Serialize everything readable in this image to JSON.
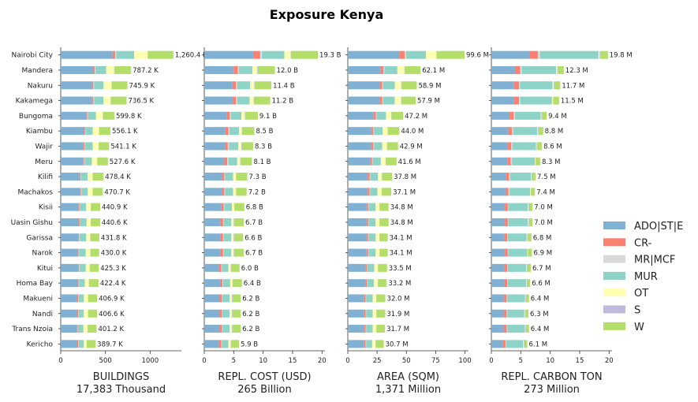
{
  "title": "Exposure Kenya",
  "chart_data": {
    "type": "bar",
    "orientation": "horizontal",
    "stacked": true,
    "title": "Exposure Kenya",
    "categories": [
      "Nairobi City",
      "Mandera",
      "Nakuru",
      "Kakamega",
      "Bungoma",
      "Kiambu",
      "Wajir",
      "Meru",
      "Kilifi",
      "Machakos",
      "Kisii",
      "Uasin Gishu",
      "Garissa",
      "Narok",
      "Kitui",
      "Homa Bay",
      "Makueni",
      "Nandi",
      "Trans Nzoia",
      "Kericho"
    ],
    "legend": {
      "position": "right",
      "series": [
        {
          "name": "ADO|ST|E",
          "color": "#80b1d3"
        },
        {
          "name": "CR-",
          "color": "#fb8072"
        },
        {
          "name": "MR|MCF",
          "color": "#d9d9d9"
        },
        {
          "name": "MUR",
          "color": "#8dd3c7"
        },
        {
          "name": "OT",
          "color": "#ffffb3"
        },
        {
          "name": "S",
          "color": "#bebada"
        },
        {
          "name": "W",
          "color": "#b3de69"
        }
      ]
    },
    "panels": [
      {
        "xlabel": "BUILDINGS",
        "subtitle": "17,383 Thousand",
        "xlim": [
          0,
          1350
        ],
        "xticks": [
          0,
          500,
          1000
        ],
        "xtick_labels": [
          "0",
          "500",
          "1000"
        ],
        "totals": [
          1260.4,
          787.2,
          745.9,
          736.5,
          599.8,
          556.1,
          541.1,
          527.6,
          478.4,
          470.7,
          440.9,
          440.6,
          431.8,
          430.0,
          425.3,
          422.4,
          406.9,
          406.6,
          401.2,
          389.7
        ],
        "labels": [
          "1,260.4 K",
          "787.2 K",
          "745.9 K",
          "736.5 K",
          "599.8 K",
          "556.1 K",
          "541.1 K",
          "527.6 K",
          "478.4 K",
          "470.7 K",
          "440.9 K",
          "440.6 K",
          "431.8 K",
          "430.0 K",
          "425.3 K",
          "422.4 K",
          "406.9 K",
          "406.6 K",
          "401.2 K",
          "389.7 K"
        ],
        "series": [
          {
            "name": "ADO|ST|E",
            "values": [
              580,
              365,
              350,
              350,
              285,
              260,
              255,
              250,
              210,
              215,
              200,
              205,
              195,
              190,
              195,
              190,
              185,
              185,
              180,
              185
            ]
          },
          {
            "name": "CR-",
            "values": [
              30,
              15,
              15,
              15,
              13,
              12,
              12,
              12,
              11,
              11,
              10,
              10,
              10,
              10,
              10,
              10,
              9,
              9,
              9,
              9
            ]
          },
          {
            "name": "MR|MCF",
            "values": [
              12,
              8,
              8,
              8,
              7,
              6,
              6,
              6,
              6,
              6,
              5,
              5,
              5,
              5,
              5,
              5,
              5,
              5,
              5,
              5
            ]
          },
          {
            "name": "MUR",
            "values": [
              200,
              120,
              105,
              105,
              90,
              80,
              85,
              80,
              75,
              70,
              70,
              70,
              75,
              75,
              70,
              65,
              60,
              60,
              60,
              60
            ]
          },
          {
            "name": "OT",
            "values": [
              150,
              90,
              90,
              80,
              75,
              70,
              65,
              60,
              55,
              55,
              50,
              45,
              45,
              50,
              45,
              45,
              45,
              45,
              45,
              30
            ]
          },
          {
            "name": "S",
            "values": [
              5,
              3,
              3,
              3,
              3,
              3,
              3,
              3,
              2,
              2,
              2,
              2,
              2,
              2,
              2,
              2,
              2,
              2,
              2,
              2
            ]
          },
          {
            "name": "W",
            "values": [
              283.4,
              186.2,
              174.9,
              175.5,
              126.8,
              125.1,
              115.1,
              116.6,
              119.4,
              111.7,
              103.9,
              103.6,
              99.8,
              98,
              98.3,
              105.4,
              100.9,
              100.6,
              100.2,
              98.7
            ]
          }
        ]
      },
      {
        "xlabel": "REPL. COST (USD)",
        "subtitle": "265 Billion",
        "xlim": [
          0,
          20.5
        ],
        "xticks": [
          0,
          5,
          10,
          15,
          20
        ],
        "xtick_labels": [
          "0",
          "5",
          "10",
          "15",
          "20"
        ],
        "totals": [
          19.3,
          12.0,
          11.4,
          11.2,
          9.1,
          8.5,
          8.3,
          8.1,
          7.3,
          7.2,
          6.8,
          6.7,
          6.6,
          6.7,
          6.0,
          6.4,
          6.2,
          6.2,
          6.2,
          5.9
        ],
        "labels": [
          "19.3 B",
          "12.0 B",
          "11.4 B",
          "11.2 B",
          "9.1 B",
          "8.5 B",
          "8.3 B",
          "8.1 B",
          "7.3 B",
          "7.2 B",
          "6.8 B",
          "6.7 B",
          "6.6 B",
          "6.7 B",
          "6.0 B",
          "6.4 B",
          "6.2 B",
          "6.2 B",
          "6.2 B",
          "5.9 B"
        ],
        "series": [
          {
            "name": "ADO|ST|E",
            "values": [
              8.3,
              5.0,
              4.8,
              4.8,
              3.8,
              3.6,
              3.5,
              3.4,
              3.0,
              3.0,
              2.9,
              2.8,
              2.8,
              2.8,
              2.5,
              2.7,
              2.6,
              2.6,
              2.6,
              2.5
            ]
          },
          {
            "name": "CR-",
            "values": [
              1.2,
              0.7,
              0.6,
              0.6,
              0.5,
              0.5,
              0.5,
              0.5,
              0.4,
              0.4,
              0.4,
              0.4,
              0.4,
              0.4,
              0.4,
              0.4,
              0.4,
              0.4,
              0.4,
              0.4
            ]
          },
          {
            "name": "MR|MCF",
            "values": [
              0.3,
              0.2,
              0.2,
              0.2,
              0.2,
              0.2,
              0.2,
              0.2,
              0.1,
              0.1,
              0.1,
              0.1,
              0.1,
              0.1,
              0.1,
              0.1,
              0.1,
              0.1,
              0.1,
              0.1
            ]
          },
          {
            "name": "MUR",
            "values": [
              3.8,
              2.3,
              2.2,
              2.1,
              1.8,
              1.6,
              1.6,
              1.5,
              1.4,
              1.4,
              1.3,
              1.3,
              1.3,
              1.3,
              1.1,
              1.2,
              1.2,
              1.2,
              1.2,
              1.1
            ]
          },
          {
            "name": "OT",
            "values": [
              1.1,
              0.8,
              0.7,
              0.7,
              0.6,
              0.5,
              0.5,
              0.5,
              0.5,
              0.5,
              0.4,
              0.4,
              0.4,
              0.4,
              0.4,
              0.4,
              0.4,
              0.4,
              0.4,
              0.4
            ]
          },
          {
            "name": "S",
            "values": [
              0.1,
              0.1,
              0.1,
              0.1,
              0.1,
              0.1,
              0.1,
              0.1,
              0.1,
              0.1,
              0.1,
              0.1,
              0.1,
              0.1,
              0.1,
              0.1,
              0.1,
              0.1,
              0.1,
              0.1
            ]
          },
          {
            "name": "W",
            "values": [
              4.5,
              2.9,
              2.8,
              2.7,
              2.1,
              2.0,
              1.9,
              1.9,
              1.8,
              1.7,
              1.6,
              1.6,
              1.5,
              1.6,
              1.4,
              1.5,
              1.4,
              1.4,
              1.4,
              1.3
            ]
          }
        ]
      },
      {
        "xlabel": "AREA (SQM)",
        "subtitle": "1,371 Million",
        "xlim": [
          0,
          103
        ],
        "xticks": [
          0,
          25,
          50,
          75,
          100
        ],
        "xtick_labels": [
          "0",
          "25",
          "50",
          "75",
          "100"
        ],
        "totals": [
          99.6,
          62.1,
          58.9,
          57.9,
          47.2,
          44.0,
          42.9,
          41.6,
          37.8,
          37.1,
          34.8,
          34.8,
          34.1,
          34.1,
          33.5,
          33.2,
          32.0,
          31.9,
          31.7,
          30.7
        ],
        "labels": [
          "99.6 M",
          "62.1 M",
          "58.9 M",
          "57.9 M",
          "47.2 M",
          "44.0 M",
          "42.9 M",
          "41.6 M",
          "37.8 M",
          "37.1 M",
          "34.8 M",
          "34.8 M",
          "34.1 M",
          "34.1 M",
          "33.5 M",
          "33.2 M",
          "32.0 M",
          "31.9 M",
          "31.7 M",
          "30.7 M"
        ],
        "series": [
          {
            "name": "ADO|ST|E",
            "values": [
              44,
              28,
              27,
              27,
              22,
              20,
              20,
              19,
              17,
              17,
              16,
              16,
              16,
              16,
              15,
              15,
              14,
              14,
              14,
              14
            ]
          },
          {
            "name": "CR-",
            "values": [
              4.5,
              2.5,
              2.4,
              2.3,
              2.0,
              1.8,
              1.8,
              1.7,
              1.6,
              1.5,
              1.4,
              1.4,
              1.4,
              1.4,
              1.4,
              1.4,
              1.3,
              1.3,
              1.3,
              1.2
            ]
          },
          {
            "name": "MR|MCF",
            "values": [
              1.2,
              0.8,
              0.7,
              0.7,
              0.6,
              0.5,
              0.5,
              0.5,
              0.5,
              0.5,
              0.4,
              0.4,
              0.4,
              0.4,
              0.4,
              0.4,
              0.4,
              0.4,
              0.4,
              0.4
            ]
          },
          {
            "name": "MUR",
            "values": [
              17,
              11,
              10,
              10,
              8,
              7.5,
              7,
              7,
              6.5,
              6.3,
              6,
              6,
              6,
              6,
              5.8,
              5.6,
              5.5,
              5.5,
              5.5,
              5.2
            ]
          },
          {
            "name": "OT",
            "values": [
              9,
              6,
              5.5,
              5.5,
              4.5,
              4.2,
              4,
              4,
              3.5,
              3.5,
              3.2,
              3.2,
              3.1,
              3.1,
              3.1,
              3.1,
              3,
              3,
              3,
              2.9
            ]
          },
          {
            "name": "S",
            "values": [
              0.4,
              0.3,
              0.3,
              0.3,
              0.2,
              0.2,
              0.2,
              0.2,
              0.2,
              0.2,
              0.2,
              0.2,
              0.2,
              0.2,
              0.2,
              0.2,
              0.2,
              0.2,
              0.2,
              0.2
            ]
          },
          {
            "name": "W",
            "values": [
              23.5,
              13.5,
              13,
              12.1,
              9.9,
              9.8,
              9.4,
              9.2,
              8.5,
              8.1,
              7.6,
              7.6,
              7,
              7,
              7.6,
              7.5,
              7.6,
              7.5,
              7.3,
              6.8
            ]
          }
        ]
      },
      {
        "xlabel": "REPL. CARBON TON",
        "subtitle": "273 Million",
        "xlim": [
          0,
          20.5
        ],
        "xticks": [
          0,
          5,
          10,
          15,
          20
        ],
        "xtick_labels": [
          "0",
          "5",
          "10",
          "15",
          "20"
        ],
        "totals": [
          19.8,
          12.3,
          11.7,
          11.5,
          9.4,
          8.8,
          8.6,
          8.3,
          7.5,
          7.4,
          7.0,
          7.0,
          6.8,
          6.9,
          6.7,
          6.6,
          6.4,
          6.3,
          6.4,
          6.1
        ],
        "labels": [
          "19.8 M",
          "12.3 M",
          "11.7 M",
          "11.5 M",
          "9.4 M",
          "8.8 M",
          "8.6 M",
          "8.3 M",
          "7.5 M",
          "7.4 M",
          "7.0 M",
          "7.0 M",
          "6.8 M",
          "6.9 M",
          "6.7 M",
          "6.6 M",
          "6.4 M",
          "6.3 M",
          "6.4 M",
          "6.1 M"
        ],
        "series": [
          {
            "name": "ADO|ST|E",
            "values": [
              6.5,
              4.0,
              3.8,
              3.8,
              3.1,
              2.9,
              2.8,
              2.7,
              2.5,
              2.4,
              2.3,
              2.3,
              2.2,
              2.3,
              2.2,
              2.2,
              2.1,
              2.1,
              2.1,
              2.0
            ]
          },
          {
            "name": "CR-",
            "values": [
              1.4,
              0.9,
              0.9,
              0.9,
              0.7,
              0.6,
              0.6,
              0.6,
              0.5,
              0.5,
              0.5,
              0.5,
              0.5,
              0.5,
              0.5,
              0.5,
              0.5,
              0.5,
              0.5,
              0.4
            ]
          },
          {
            "name": "MR|MCF",
            "values": [
              0.4,
              0.3,
              0.2,
              0.2,
              0.2,
              0.2,
              0.2,
              0.2,
              0.2,
              0.2,
              0.1,
              0.1,
              0.1,
              0.1,
              0.1,
              0.1,
              0.1,
              0.1,
              0.1,
              0.1
            ]
          },
          {
            "name": "MUR",
            "values": [
              9.9,
              5.8,
              5.5,
              5.4,
              4.4,
              4.1,
              4.0,
              3.9,
              3.5,
              3.5,
              3.3,
              3.3,
              3.2,
              3.2,
              3.1,
              3.1,
              3.0,
              2.9,
              3.0,
              2.9
            ]
          },
          {
            "name": "OT",
            "values": [
              0.2,
              0.2,
              0.2,
              0.2,
              0.1,
              0.1,
              0.1,
              0.1,
              0.1,
              0.1,
              0.1,
              0.1,
              0.1,
              0.1,
              0.1,
              0.1,
              0.1,
              0.1,
              0.1,
              0.1
            ]
          },
          {
            "name": "S",
            "values": [
              0.1,
              0.1,
              0.1,
              0.1,
              0.1,
              0.1,
              0.1,
              0.1,
              0.1,
              0.1,
              0.1,
              0.1,
              0.1,
              0.1,
              0.1,
              0.1,
              0.1,
              0.1,
              0.1,
              0.1
            ]
          },
          {
            "name": "W",
            "values": [
              1.3,
              1.0,
              1.0,
              0.9,
              0.8,
              0.8,
              0.8,
              0.7,
              0.6,
              0.6,
              0.6,
              0.6,
              0.6,
              0.6,
              0.6,
              0.5,
              0.5,
              0.5,
              0.5,
              0.5
            ]
          }
        ]
      }
    ]
  }
}
